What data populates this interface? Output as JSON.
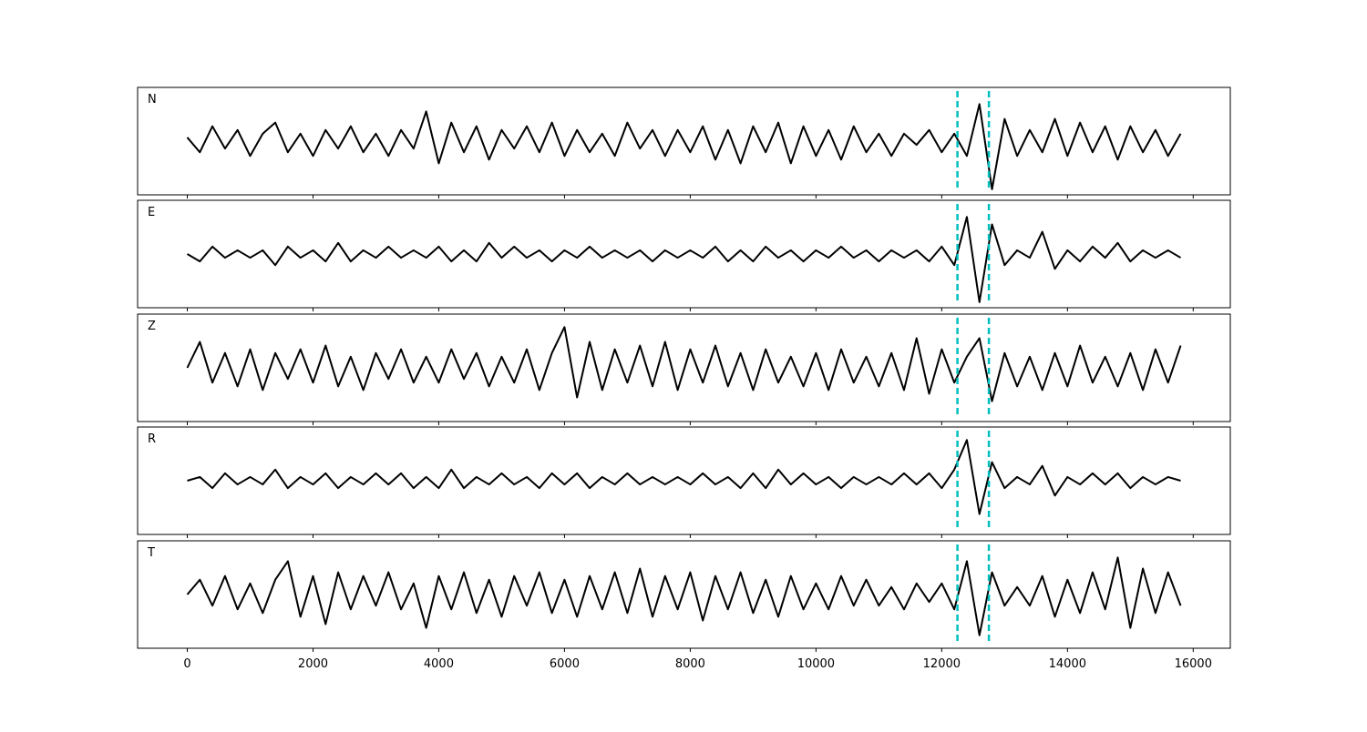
{
  "chart_data": [
    {
      "type": "line",
      "title": "N",
      "color": "#000000",
      "x": [
        0,
        200,
        400,
        600,
        800,
        1000,
        1200,
        1400,
        1600,
        1800,
        2000,
        2200,
        2400,
        2600,
        2800,
        3000,
        3200,
        3400,
        3600,
        3800,
        4000,
        4200,
        4400,
        4600,
        4800,
        5000,
        5200,
        5400,
        5600,
        5800,
        6000,
        6200,
        6400,
        6600,
        6800,
        7000,
        7200,
        7400,
        7600,
        7800,
        8000,
        8200,
        8400,
        8600,
        8800,
        9000,
        9200,
        9400,
        9600,
        9800,
        10000,
        10200,
        10400,
        10600,
        10800,
        11000,
        11200,
        11400,
        11600,
        11800,
        12000,
        12200,
        12400,
        12600,
        12800,
        13000,
        13200,
        13400,
        13600,
        13800,
        14000,
        14200,
        14400,
        14600,
        14800,
        15000,
        15200,
        15400,
        15600,
        15800
      ],
      "values": [
        0.1,
        -0.3,
        0.4,
        -0.2,
        0.3,
        -0.4,
        0.2,
        0.5,
        -0.3,
        0.2,
        -0.4,
        0.3,
        -0.2,
        0.4,
        -0.3,
        0.2,
        -0.4,
        0.3,
        -0.2,
        0.8,
        -0.6,
        0.5,
        -0.3,
        0.4,
        -0.5,
        0.3,
        -0.2,
        0.4,
        -0.3,
        0.5,
        -0.4,
        0.3,
        -0.3,
        0.2,
        -0.4,
        0.5,
        -0.2,
        0.3,
        -0.4,
        0.3,
        -0.3,
        0.4,
        -0.5,
        0.3,
        -0.6,
        0.4,
        -0.3,
        0.5,
        -0.6,
        0.4,
        -0.4,
        0.3,
        -0.5,
        0.4,
        -0.3,
        0.2,
        -0.4,
        0.2,
        -0.1,
        0.3,
        -0.3,
        0.2,
        -0.4,
        1.0,
        -1.3,
        0.6,
        -0.4,
        0.3,
        -0.3,
        0.6,
        -0.4,
        0.5,
        -0.3,
        0.4,
        -0.5,
        0.4,
        -0.3,
        0.3,
        -0.4,
        0.2
      ],
      "xlim": [
        -790,
        16590
      ],
      "ylim": [
        -1.45,
        1.45
      ],
      "vlines": [
        12250,
        12750
      ],
      "vline_color": "#00bfbf"
    },
    {
      "type": "line",
      "title": "E",
      "color": "#000000",
      "x": [
        0,
        200,
        400,
        600,
        800,
        1000,
        1200,
        1400,
        1600,
        1800,
        2000,
        2200,
        2400,
        2600,
        2800,
        3000,
        3200,
        3400,
        3600,
        3800,
        4000,
        4200,
        4400,
        4600,
        4800,
        5000,
        5200,
        5400,
        5600,
        5800,
        6000,
        6200,
        6400,
        6600,
        6800,
        7000,
        7200,
        7400,
        7600,
        7800,
        8000,
        8200,
        8400,
        8600,
        8800,
        9000,
        9200,
        9400,
        9600,
        9800,
        10000,
        10200,
        10400,
        10600,
        10800,
        11000,
        11200,
        11400,
        11600,
        11800,
        12000,
        12200,
        12400,
        12600,
        12800,
        13000,
        13200,
        13400,
        13600,
        13800,
        14000,
        14200,
        14400,
        14600,
        14800,
        15000,
        15200,
        15400,
        15600,
        15800
      ],
      "values": [
        0.0,
        -0.2,
        0.2,
        -0.1,
        0.1,
        -0.1,
        0.1,
        -0.3,
        0.2,
        -0.1,
        0.1,
        -0.2,
        0.3,
        -0.2,
        0.1,
        -0.1,
        0.2,
        -0.1,
        0.1,
        -0.1,
        0.2,
        -0.2,
        0.1,
        -0.2,
        0.3,
        -0.1,
        0.2,
        -0.1,
        0.1,
        -0.2,
        0.1,
        -0.1,
        0.2,
        -0.1,
        0.1,
        -0.1,
        0.1,
        -0.2,
        0.1,
        -0.1,
        0.1,
        -0.1,
        0.2,
        -0.2,
        0.1,
        -0.2,
        0.2,
        -0.1,
        0.1,
        -0.2,
        0.1,
        -0.1,
        0.2,
        -0.1,
        0.1,
        -0.2,
        0.1,
        -0.1,
        0.1,
        -0.2,
        0.2,
        -0.3,
        1.0,
        -1.3,
        0.8,
        -0.3,
        0.1,
        -0.1,
        0.6,
        -0.4,
        0.1,
        -0.2,
        0.2,
        -0.1,
        0.3,
        -0.2,
        0.1,
        -0.1,
        0.1,
        -0.1
      ],
      "xlim": [
        -790,
        16590
      ],
      "ylim": [
        -1.45,
        1.45
      ],
      "vlines": [
        12250,
        12750
      ],
      "vline_color": "#00bfbf"
    },
    {
      "type": "line",
      "title": "Z",
      "color": "#000000",
      "x": [
        0,
        200,
        400,
        600,
        800,
        1000,
        1200,
        1400,
        1600,
        1800,
        2000,
        2200,
        2400,
        2600,
        2800,
        3000,
        3200,
        3400,
        3600,
        3800,
        4000,
        4200,
        4400,
        4600,
        4800,
        5000,
        5200,
        5400,
        5600,
        5800,
        6000,
        6200,
        6400,
        6600,
        6800,
        7000,
        7200,
        7400,
        7600,
        7800,
        8000,
        8200,
        8400,
        8600,
        8800,
        9000,
        9200,
        9400,
        9600,
        9800,
        10000,
        10200,
        10400,
        10600,
        10800,
        11000,
        11200,
        11400,
        11600,
        11800,
        12000,
        12200,
        12400,
        12600,
        12800,
        13000,
        13200,
        13400,
        13600,
        13800,
        14000,
        14200,
        14400,
        14600,
        14800,
        15000,
        15200,
        15400,
        15600,
        15800
      ],
      "values": [
        0.0,
        0.7,
        -0.4,
        0.4,
        -0.5,
        0.5,
        -0.6,
        0.4,
        -0.3,
        0.5,
        -0.4,
        0.6,
        -0.5,
        0.3,
        -0.6,
        0.4,
        -0.3,
        0.5,
        -0.4,
        0.3,
        -0.4,
        0.5,
        -0.3,
        0.4,
        -0.5,
        0.3,
        -0.4,
        0.5,
        -0.6,
        0.4,
        1.1,
        -0.8,
        0.7,
        -0.6,
        0.5,
        -0.4,
        0.6,
        -0.5,
        0.7,
        -0.6,
        0.5,
        -0.4,
        0.6,
        -0.5,
        0.4,
        -0.6,
        0.5,
        -0.4,
        0.3,
        -0.5,
        0.4,
        -0.6,
        0.5,
        -0.4,
        0.3,
        -0.5,
        0.4,
        -0.6,
        0.8,
        -0.7,
        0.5,
        -0.4,
        0.3,
        0.8,
        -0.9,
        0.4,
        -0.5,
        0.3,
        -0.6,
        0.4,
        -0.5,
        0.6,
        -0.4,
        0.3,
        -0.5,
        0.4,
        -0.6,
        0.5,
        -0.4,
        0.6
      ],
      "xlim": [
        -790,
        16590
      ],
      "ylim": [
        -1.45,
        1.45
      ],
      "vlines": [
        12250,
        12750
      ],
      "vline_color": "#00bfbf"
    },
    {
      "type": "line",
      "title": "R",
      "color": "#000000",
      "x": [
        0,
        200,
        400,
        600,
        800,
        1000,
        1200,
        1400,
        1600,
        1800,
        2000,
        2200,
        2400,
        2600,
        2800,
        3000,
        3200,
        3400,
        3600,
        3800,
        4000,
        4200,
        4400,
        4600,
        4800,
        5000,
        5200,
        5400,
        5600,
        5800,
        6000,
        6200,
        6400,
        6600,
        6800,
        7000,
        7200,
        7400,
        7600,
        7800,
        8000,
        8200,
        8400,
        8600,
        8800,
        9000,
        9200,
        9400,
        9600,
        9800,
        10000,
        10200,
        10400,
        10600,
        10800,
        11000,
        11200,
        11400,
        11600,
        11800,
        12000,
        12200,
        12400,
        12600,
        12800,
        13000,
        13200,
        13400,
        13600,
        13800,
        14000,
        14200,
        14400,
        14600,
        14800,
        15000,
        15200,
        15400,
        15600,
        15800
      ],
      "values": [
        0.0,
        0.1,
        -0.2,
        0.2,
        -0.1,
        0.1,
        -0.1,
        0.3,
        -0.2,
        0.1,
        -0.1,
        0.2,
        -0.2,
        0.1,
        -0.1,
        0.2,
        -0.1,
        0.2,
        -0.2,
        0.1,
        -0.2,
        0.3,
        -0.2,
        0.1,
        -0.1,
        0.2,
        -0.1,
        0.1,
        -0.2,
        0.2,
        -0.1,
        0.2,
        -0.2,
        0.1,
        -0.1,
        0.2,
        -0.1,
        0.1,
        -0.1,
        0.1,
        -0.1,
        0.2,
        -0.1,
        0.1,
        -0.2,
        0.2,
        -0.2,
        0.3,
        -0.1,
        0.2,
        -0.1,
        0.1,
        -0.2,
        0.1,
        -0.1,
        0.1,
        -0.1,
        0.2,
        -0.1,
        0.2,
        -0.2,
        0.3,
        1.1,
        -0.9,
        0.5,
        -0.2,
        0.1,
        -0.1,
        0.4,
        -0.4,
        0.1,
        -0.1,
        0.2,
        -0.1,
        0.2,
        -0.2,
        0.1,
        -0.1,
        0.1,
        0.0
      ],
      "xlim": [
        -790,
        16590
      ],
      "ylim": [
        -1.45,
        1.45
      ],
      "vlines": [
        12250,
        12750
      ],
      "vline_color": "#00bfbf"
    },
    {
      "type": "line",
      "title": "T",
      "color": "#000000",
      "x": [
        0,
        200,
        400,
        600,
        800,
        1000,
        1200,
        1400,
        1600,
        1800,
        2000,
        2200,
        2400,
        2600,
        2800,
        3000,
        3200,
        3400,
        3600,
        3800,
        4000,
        4200,
        4400,
        4600,
        4800,
        5000,
        5200,
        5400,
        5600,
        5800,
        6000,
        6200,
        6400,
        6600,
        6800,
        7000,
        7200,
        7400,
        7600,
        7800,
        8000,
        8200,
        8400,
        8600,
        8800,
        9000,
        9200,
        9400,
        9600,
        9800,
        10000,
        10200,
        10400,
        10600,
        10800,
        11000,
        11200,
        11400,
        11600,
        11800,
        12000,
        12200,
        12400,
        12600,
        12800,
        13000,
        13200,
        13400,
        13600,
        13800,
        14000,
        14200,
        14400,
        14600,
        14800,
        15000,
        15200,
        15400,
        15600,
        15800
      ],
      "values": [
        0.0,
        0.4,
        -0.3,
        0.5,
        -0.4,
        0.3,
        -0.5,
        0.4,
        0.9,
        -0.6,
        0.5,
        -0.8,
        0.6,
        -0.4,
        0.5,
        -0.3,
        0.6,
        -0.4,
        0.3,
        -0.9,
        0.5,
        -0.4,
        0.6,
        -0.5,
        0.4,
        -0.6,
        0.5,
        -0.3,
        0.6,
        -0.5,
        0.4,
        -0.6,
        0.5,
        -0.4,
        0.6,
        -0.5,
        0.7,
        -0.6,
        0.5,
        -0.4,
        0.6,
        -0.7,
        0.5,
        -0.4,
        0.6,
        -0.5,
        0.4,
        -0.6,
        0.5,
        -0.4,
        0.3,
        -0.4,
        0.5,
        -0.3,
        0.4,
        -0.3,
        0.2,
        -0.4,
        0.3,
        -0.2,
        0.3,
        -0.4,
        0.9,
        -1.1,
        0.6,
        -0.3,
        0.2,
        -0.3,
        0.5,
        -0.6,
        0.4,
        -0.5,
        0.6,
        -0.4,
        1.0,
        -0.9,
        0.7,
        -0.5,
        0.6,
        -0.3
      ],
      "xlim": [
        -790,
        16590
      ],
      "ylim": [
        -1.45,
        1.45
      ],
      "xticks": [
        0,
        2000,
        4000,
        6000,
        8000,
        10000,
        12000,
        14000,
        16000
      ],
      "vlines": [
        12250,
        12750
      ],
      "vline_color": "#00bfbf"
    }
  ]
}
